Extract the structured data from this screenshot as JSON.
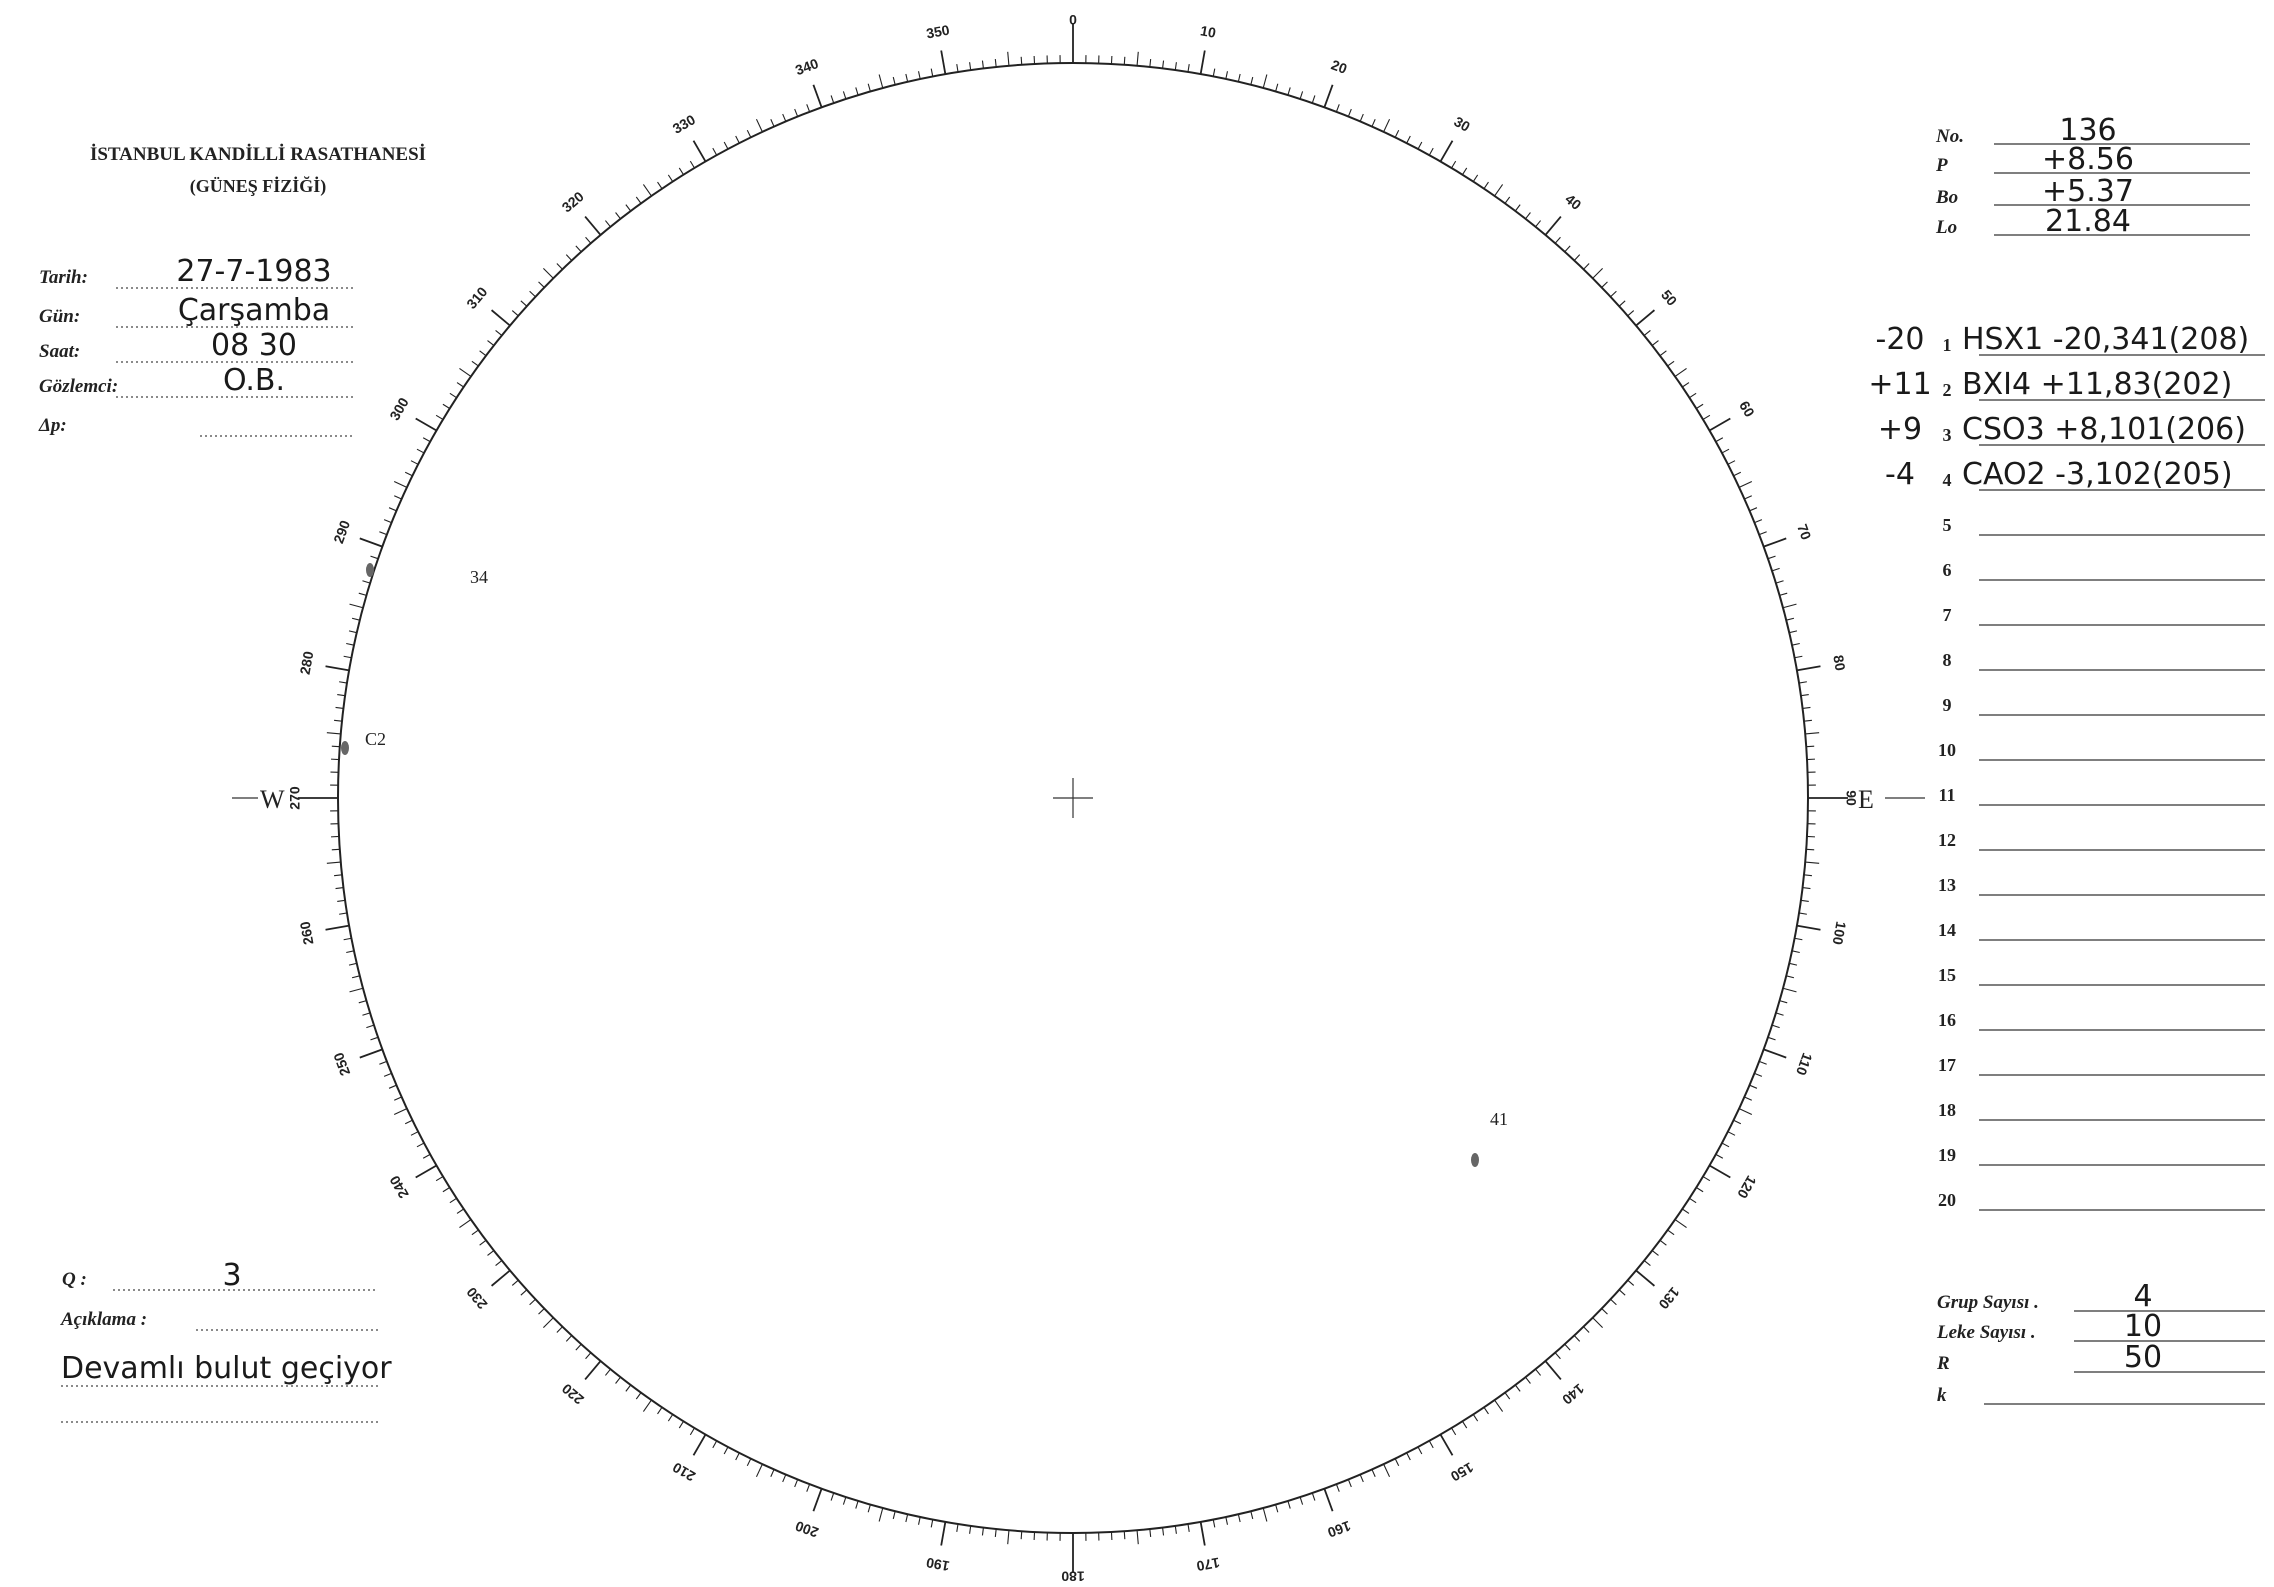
{
  "header": {
    "title": "İSTANBUL KANDİLLİ RASATHANESİ",
    "subtitle": "(GÜNEŞ FİZİĞİ)"
  },
  "observation": [
    {
      "label": "Tarih:",
      "value": "27-7-1983"
    },
    {
      "label": "Gün:",
      "value": "Çarşamba"
    },
    {
      "label": "Saat:",
      "value": "08 30"
    },
    {
      "label": "Gözlemci:",
      "value": "O.B."
    },
    {
      "label": "Δp:"
    }
  ],
  "parameters": [
    {
      "label": "No.",
      "value": "136"
    },
    {
      "label": "P",
      "value": "+8.56"
    },
    {
      "label": "Bo",
      "value": "+5.37"
    },
    {
      "label": "Lo",
      "value": "21.84"
    }
  ],
  "groups": [
    {
      "number": "1",
      "prefix": "-20",
      "text": "HSX1 -20,341(208)"
    },
    {
      "number": "2",
      "prefix": "+11",
      "text": "BXI4 +11,83(202)"
    },
    {
      "number": "3",
      "prefix": "+9",
      "text": "CSO3 +8,101(206)"
    },
    {
      "number": "4",
      "prefix": "-4",
      "text": "CAO2 -3,102(205)"
    },
    {
      "number": "5"
    },
    {
      "number": "6"
    },
    {
      "number": "7"
    },
    {
      "number": "8"
    },
    {
      "number": "9"
    },
    {
      "number": "10"
    },
    {
      "number": "11"
    },
    {
      "number": "12"
    },
    {
      "number": "13"
    },
    {
      "number": "14"
    },
    {
      "number": "15"
    },
    {
      "number": "16"
    },
    {
      "number": "17"
    },
    {
      "number": "18"
    },
    {
      "number": "19"
    },
    {
      "number": "20"
    }
  ],
  "disk": {
    "degree_labels": [
      "0",
      "10",
      "20",
      "30",
      "40",
      "50",
      "60",
      "70",
      "80",
      "90",
      "100",
      "110",
      "120",
      "130",
      "140",
      "150",
      "160",
      "170",
      "180",
      "190",
      "200",
      "210",
      "220",
      "230",
      "240",
      "250",
      "260",
      "270",
      "280",
      "290",
      "300",
      "310",
      "320",
      "330",
      "340",
      "350"
    ],
    "west": "W",
    "east": "E",
    "spot_labels": [
      "34",
      "C2",
      "41"
    ]
  },
  "quality": {
    "label": "Q :",
    "value": "3"
  },
  "remarks": {
    "label": "Açıklama :",
    "text": "Devamlı bulut geçiyor"
  },
  "summary": [
    {
      "label": "Grup Sayısı .",
      "value": "4"
    },
    {
      "label": "Leke Sayısı .",
      "value": "10"
    },
    {
      "label": "R",
      "value": "50"
    },
    {
      "label": "k"
    }
  ]
}
